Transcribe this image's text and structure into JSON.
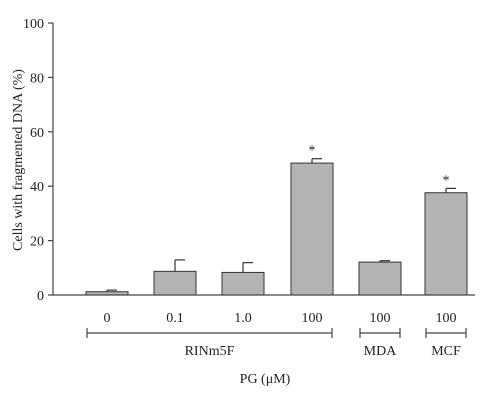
{
  "chart_data": {
    "type": "bar",
    "ylabel": "Cells with fragmented DNA (%)",
    "xlabel": "PG (μM)",
    "ylim": [
      0,
      100
    ],
    "y_ticks": [
      0,
      20,
      40,
      60,
      80,
      100
    ],
    "categories": [
      "0",
      "0.1",
      "1.0",
      "100",
      "100",
      "100"
    ],
    "values": [
      1.2,
      8.7,
      8.3,
      48.5,
      12.1,
      37.6
    ],
    "errors": [
      0.6,
      4.2,
      3.6,
      1.6,
      0.5,
      1.6
    ],
    "significance": [
      "",
      "",
      "",
      "*",
      "",
      "*"
    ],
    "groups": [
      {
        "label": "RINm5F",
        "start": 0,
        "end": 3
      },
      {
        "label": "MDA",
        "start": 4,
        "end": 4
      },
      {
        "label": "MCF",
        "start": 5,
        "end": 5
      }
    ],
    "colors": {
      "bar": "#b4b4b4",
      "stroke": "#333333",
      "axis": "#444444"
    }
  }
}
